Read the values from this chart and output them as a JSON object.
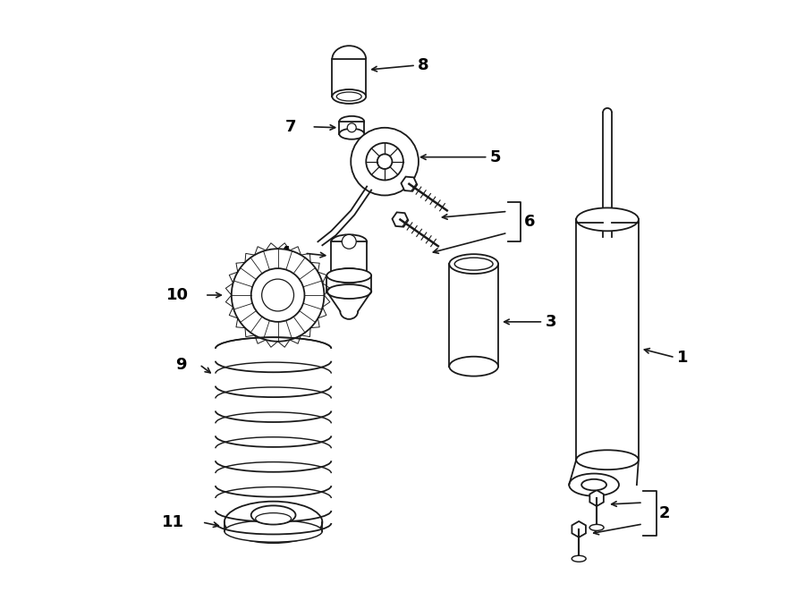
{
  "bg_color": "#ffffff",
  "line_color": "#1a1a1a",
  "lw": 1.3,
  "fig_width": 9.0,
  "fig_height": 6.62,
  "dpi": 100,
  "font_size": 13
}
